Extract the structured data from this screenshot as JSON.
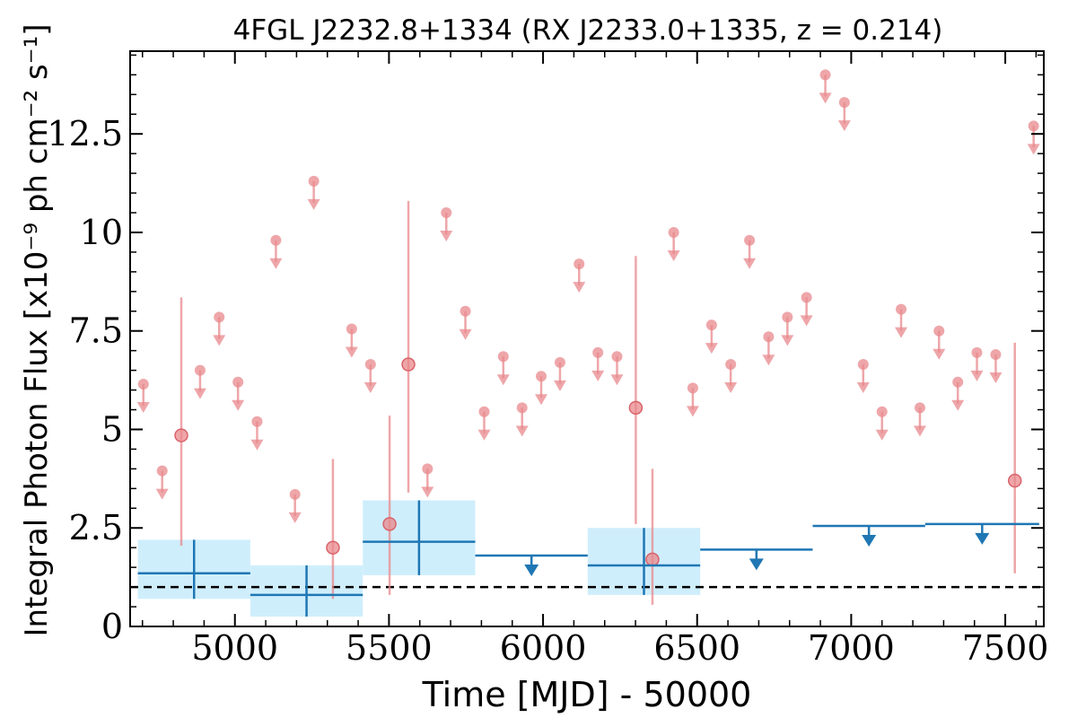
{
  "chart_data": {
    "type": "scatter",
    "title": "4FGL J2232.8+1334 (RX J2233.0+1335, z = 0.214)",
    "xlabel": "Time [MJD] - 50000",
    "ylabel": "Integral Photon Flux [x10⁻⁹ ph cm⁻² s⁻¹]",
    "xlim": [
      4660,
      7625
    ],
    "ylim": [
      0,
      14.6
    ],
    "xticks": [
      5000,
      5500,
      6000,
      6500,
      7000,
      7500
    ],
    "xtick_labels": [
      "5000",
      "5500",
      "6000",
      "6500",
      "7000",
      "7500"
    ],
    "yticks": [
      0,
      2.5,
      5,
      7.5,
      10,
      12.5
    ],
    "ytick_labels": [
      "0",
      "2.5",
      "5",
      "7.5",
      "10",
      "12.5"
    ],
    "grid": false,
    "reference_line": {
      "y": 1.0,
      "style": "dashed",
      "color": "#000000"
    },
    "colors": {
      "fine_bins": "#e8888c",
      "coarse_bins": "#1f77b4",
      "coarse_box": "#cfeefc"
    },
    "series": [
      {
        "points": [
          {
            "x": 4703,
            "y": 6.15,
            "ul": true
          },
          {
            "x": 4764,
            "y": 3.95,
            "ul": true
          },
          {
            "x": 4826,
            "y": 4.85,
            "lo": 2.05,
            "hi": 8.35
          },
          {
            "x": 4887,
            "y": 6.5,
            "ul": true
          },
          {
            "x": 4949,
            "y": 7.85,
            "ul": true
          },
          {
            "x": 5010,
            "y": 6.2,
            "ul": true
          },
          {
            "x": 5072,
            "y": 5.2,
            "ul": true
          },
          {
            "x": 5133,
            "y": 9.8,
            "ul": true
          },
          {
            "x": 5195,
            "y": 3.35,
            "ul": true
          },
          {
            "x": 5256,
            "y": 11.3,
            "ul": true
          },
          {
            "x": 5318,
            "y": 2.0,
            "lo": 0.7,
            "hi": 4.25
          },
          {
            "x": 5379,
            "y": 7.55,
            "ul": true
          },
          {
            "x": 5440,
            "y": 6.65,
            "ul": true
          },
          {
            "x": 5502,
            "y": 2.6,
            "lo": 0.8,
            "hi": 5.35
          },
          {
            "x": 5563,
            "y": 6.65,
            "lo": 3.4,
            "hi": 10.8
          },
          {
            "x": 5625,
            "y": 4.0,
            "ul": true
          },
          {
            "x": 5686,
            "y": 10.5,
            "ul": true
          },
          {
            "x": 5748,
            "y": 8.0,
            "ul": true
          },
          {
            "x": 5809,
            "y": 5.45,
            "ul": true
          },
          {
            "x": 5871,
            "y": 6.85,
            "ul": true
          },
          {
            "x": 5932,
            "y": 5.55,
            "ul": true
          },
          {
            "x": 5994,
            "y": 6.35,
            "ul": true
          },
          {
            "x": 6055,
            "y": 6.7,
            "ul": true
          },
          {
            "x": 6117,
            "y": 9.2,
            "ul": true
          },
          {
            "x": 6178,
            "y": 6.95,
            "ul": true
          },
          {
            "x": 6240,
            "y": 6.85,
            "ul": true
          },
          {
            "x": 6301,
            "y": 5.55,
            "lo": 2.6,
            "hi": 9.4
          },
          {
            "x": 6355,
            "y": 1.7,
            "lo": 0.55,
            "hi": 4.0
          },
          {
            "x": 6424,
            "y": 10.0,
            "ul": true
          },
          {
            "x": 6486,
            "y": 6.05,
            "ul": true
          },
          {
            "x": 6547,
            "y": 7.65,
            "ul": true
          },
          {
            "x": 6609,
            "y": 6.65,
            "ul": true
          },
          {
            "x": 6670,
            "y": 9.8,
            "ul": true
          },
          {
            "x": 6732,
            "y": 7.35,
            "ul": true
          },
          {
            "x": 6793,
            "y": 7.85,
            "ul": true
          },
          {
            "x": 6855,
            "y": 8.35,
            "ul": true
          },
          {
            "x": 6916,
            "y": 14.0,
            "ul": true
          },
          {
            "x": 6978,
            "y": 13.3,
            "ul": true
          },
          {
            "x": 7039,
            "y": 6.65,
            "ul": true
          },
          {
            "x": 7100,
            "y": 5.45,
            "ul": true
          },
          {
            "x": 7162,
            "y": 8.05,
            "ul": true
          },
          {
            "x": 7223,
            "y": 5.55,
            "ul": true
          },
          {
            "x": 7285,
            "y": 7.5,
            "ul": true
          },
          {
            "x": 7346,
            "y": 6.2,
            "ul": true
          },
          {
            "x": 7408,
            "y": 6.95,
            "ul": true
          },
          {
            "x": 7469,
            "y": 6.9,
            "ul": true
          },
          {
            "x": 7531,
            "y": 3.7,
            "lo": 1.35,
            "hi": 7.2
          },
          {
            "x": 7592,
            "y": 12.7,
            "ul": true
          }
        ]
      },
      {
        "bins": [
          {
            "x0": 4685,
            "x1": 5050,
            "y": 1.35,
            "lo": 0.7,
            "hi": 2.2
          },
          {
            "x0": 5050,
            "x1": 5415,
            "y": 0.8,
            "lo": 0.25,
            "hi": 1.55
          },
          {
            "x0": 5415,
            "x1": 5780,
            "y": 2.15,
            "lo": 1.3,
            "hi": 3.2
          },
          {
            "x0": 5780,
            "x1": 6145,
            "y": 1.8,
            "ul": true
          },
          {
            "x0": 6145,
            "x1": 6510,
            "y": 1.55,
            "lo": 0.8,
            "hi": 2.5
          },
          {
            "x0": 6510,
            "x1": 6875,
            "y": 1.95,
            "ul": true
          },
          {
            "x0": 6875,
            "x1": 7240,
            "y": 2.55,
            "ul": true
          },
          {
            "x0": 7240,
            "x1": 7610,
            "y": 2.6,
            "ul": true
          }
        ]
      }
    ]
  }
}
